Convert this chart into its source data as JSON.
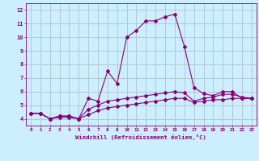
{
  "xlabel": "Windchill (Refroidissement éolien,°C)",
  "background_color": "#cceeff",
  "grid_color": "#aabbc0",
  "line_color": "#880077",
  "xlim": [
    -0.5,
    23.5
  ],
  "ylim": [
    3.5,
    12.5
  ],
  "xticks": [
    0,
    1,
    2,
    3,
    4,
    5,
    6,
    7,
    8,
    9,
    10,
    11,
    12,
    13,
    14,
    15,
    16,
    17,
    18,
    19,
    20,
    21,
    22,
    23
  ],
  "yticks": [
    4,
    5,
    6,
    7,
    8,
    9,
    10,
    11,
    12
  ],
  "series1_x": [
    0,
    1,
    2,
    3,
    4,
    5,
    6,
    7,
    8,
    9,
    10,
    11,
    12,
    13,
    14,
    15,
    16,
    17,
    18,
    19,
    20,
    21,
    22,
    23
  ],
  "series1_y": [
    4.4,
    4.4,
    4.0,
    4.2,
    4.2,
    4.0,
    5.5,
    5.3,
    7.5,
    6.6,
    10.0,
    10.5,
    11.2,
    11.2,
    11.5,
    11.7,
    9.3,
    6.3,
    5.85,
    5.7,
    6.0,
    6.0,
    5.5,
    5.5
  ],
  "series2_x": [
    0,
    1,
    2,
    3,
    4,
    5,
    6,
    7,
    8,
    9,
    10,
    11,
    12,
    13,
    14,
    15,
    16,
    17,
    18,
    19,
    20,
    21,
    22,
    23
  ],
  "series2_y": [
    4.4,
    4.4,
    4.0,
    4.2,
    4.2,
    4.0,
    4.7,
    5.0,
    5.3,
    5.4,
    5.5,
    5.6,
    5.7,
    5.8,
    5.9,
    6.0,
    5.9,
    5.3,
    5.5,
    5.6,
    5.8,
    5.8,
    5.6,
    5.5
  ],
  "series3_x": [
    0,
    1,
    2,
    3,
    4,
    5,
    6,
    7,
    8,
    9,
    10,
    11,
    12,
    13,
    14,
    15,
    16,
    17,
    18,
    19,
    20,
    21,
    22,
    23
  ],
  "series3_y": [
    4.4,
    4.4,
    4.0,
    4.1,
    4.1,
    4.0,
    4.3,
    4.6,
    4.8,
    4.9,
    5.0,
    5.1,
    5.2,
    5.3,
    5.4,
    5.5,
    5.5,
    5.2,
    5.3,
    5.4,
    5.4,
    5.5,
    5.5,
    5.5
  ]
}
